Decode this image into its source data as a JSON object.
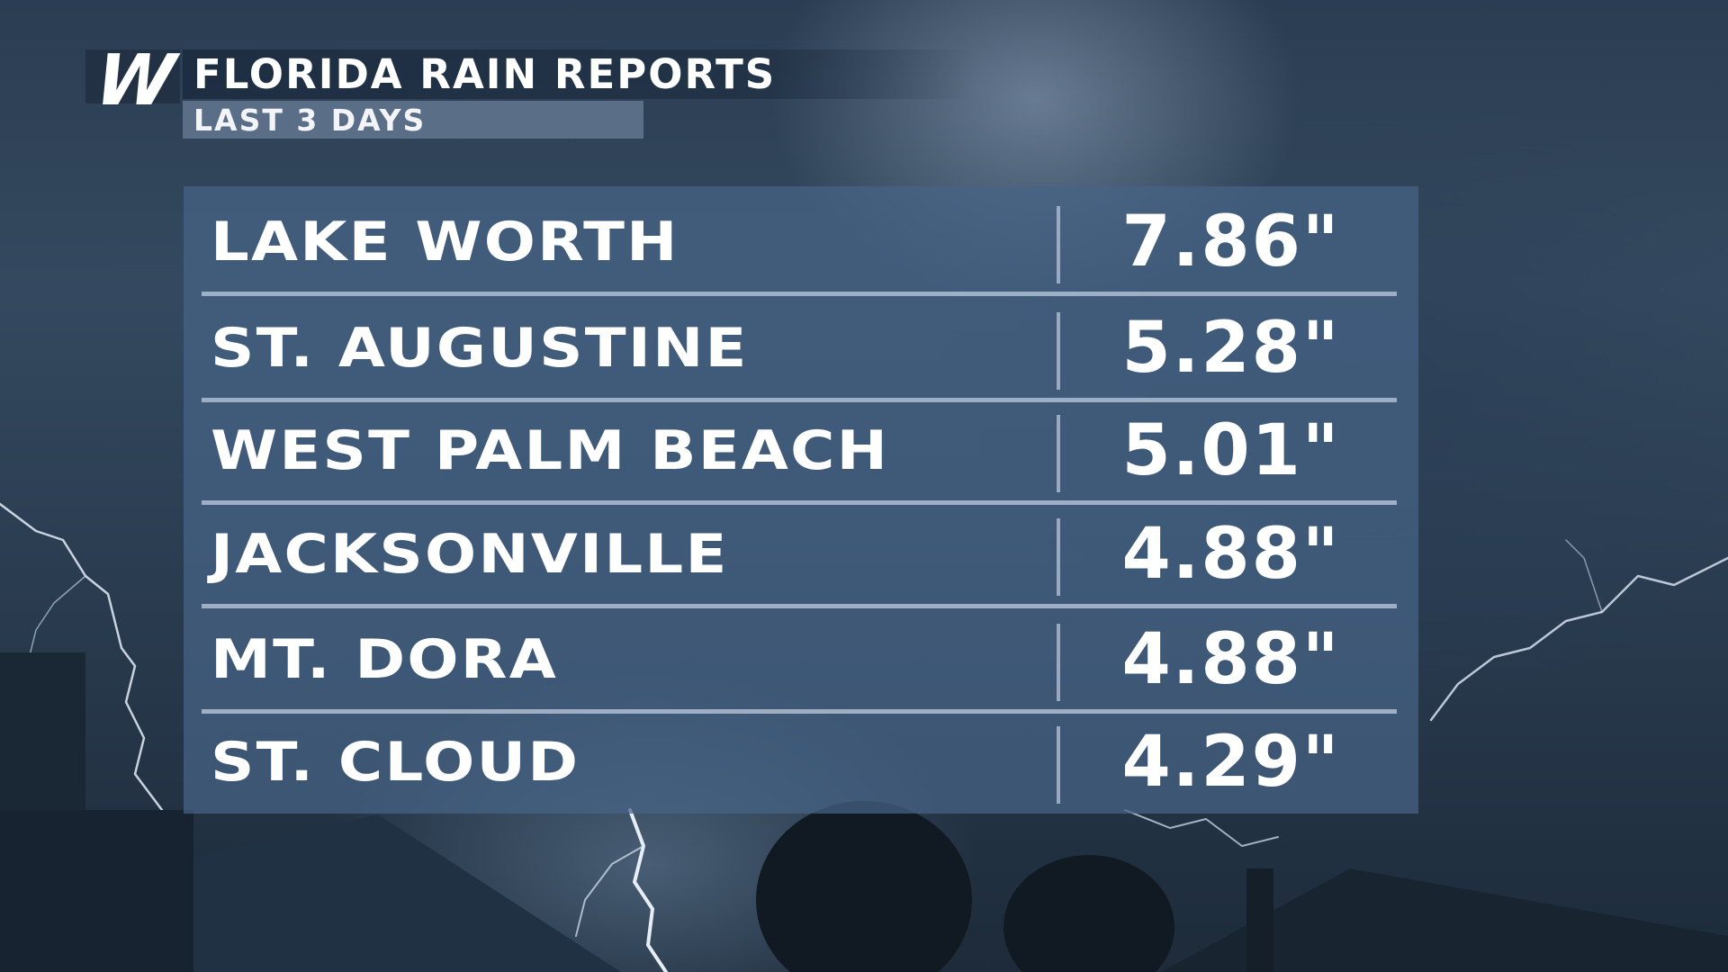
{
  "logo": {
    "letter": "W"
  },
  "header": {
    "title": "FLORIDA RAIN REPORTS",
    "subtitle": "LAST 3 DAYS"
  },
  "rows": [
    {
      "location": "LAKE WORTH",
      "amount": "7.86\""
    },
    {
      "location": "ST. AUGUSTINE",
      "amount": "5.28\""
    },
    {
      "location": "WEST PALM BEACH",
      "amount": "5.01\""
    },
    {
      "location": "JACKSONVILLE",
      "amount": "4.88\""
    },
    {
      "location": "MT. DORA",
      "amount": "4.88\""
    },
    {
      "location": "ST. CLOUD",
      "amount": "4.29\""
    }
  ],
  "colors": {
    "panel": "#46648a",
    "divider": "#afbed2",
    "text": "#ffffff"
  }
}
